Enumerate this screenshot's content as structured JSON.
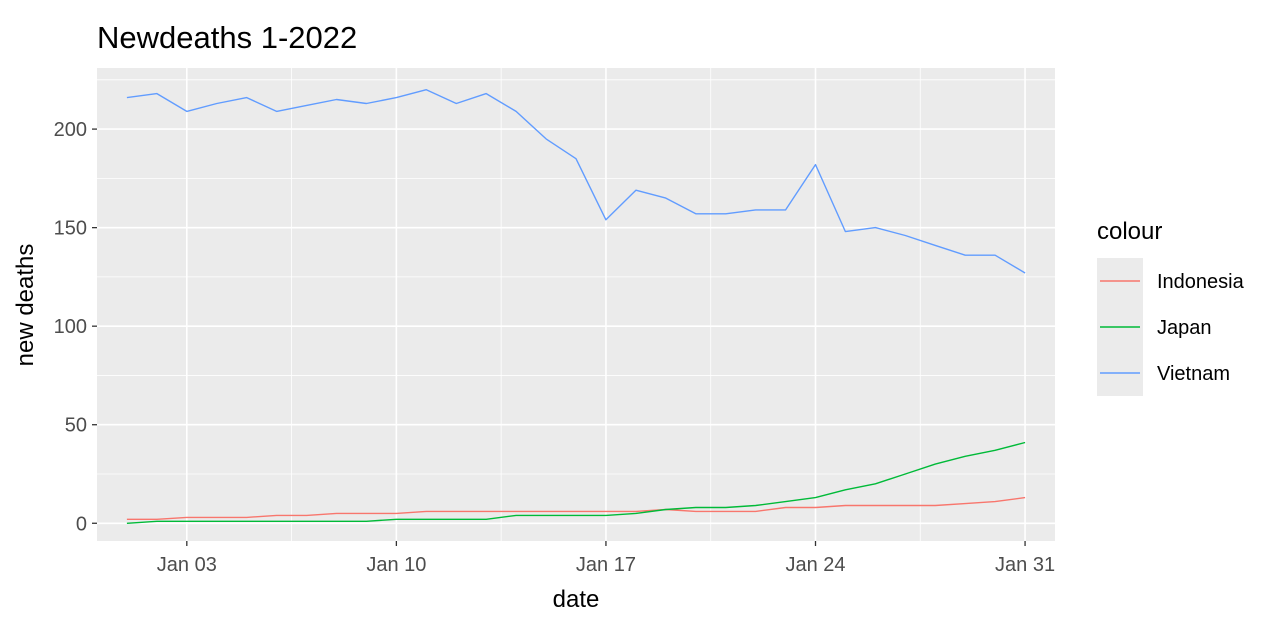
{
  "chart_data": {
    "type": "line",
    "title": "Newdeaths 1-2022",
    "xlabel": "date",
    "ylabel": "new deaths",
    "x": [
      "2022-01-01",
      "2022-01-02",
      "2022-01-03",
      "2022-01-04",
      "2022-01-05",
      "2022-01-06",
      "2022-01-07",
      "2022-01-08",
      "2022-01-09",
      "2022-01-10",
      "2022-01-11",
      "2022-01-12",
      "2022-01-13",
      "2022-01-14",
      "2022-01-15",
      "2022-01-16",
      "2022-01-17",
      "2022-01-18",
      "2022-01-19",
      "2022-01-20",
      "2022-01-21",
      "2022-01-22",
      "2022-01-23",
      "2022-01-24",
      "2022-01-25",
      "2022-01-26",
      "2022-01-27",
      "2022-01-28",
      "2022-01-29",
      "2022-01-30",
      "2022-01-31"
    ],
    "x_tick_labels": [
      "Jan 03",
      "Jan 10",
      "Jan 17",
      "Jan 24",
      "Jan 31"
    ],
    "x_tick_dates": [
      "2022-01-03",
      "2022-01-10",
      "2022-01-17",
      "2022-01-24",
      "2022-01-31"
    ],
    "y_ticks": [
      0,
      50,
      100,
      150,
      200
    ],
    "xlim": [
      "2021-12-31",
      "2022-02-01"
    ],
    "ylim": [
      -9,
      231
    ],
    "grid": true,
    "legend_title": "colour",
    "legend_position": "right",
    "series": [
      {
        "name": "Indonesia",
        "color": "#F8766D",
        "values": [
          2,
          2,
          3,
          3,
          3,
          4,
          4,
          5,
          5,
          5,
          6,
          6,
          6,
          6,
          6,
          6,
          6,
          6,
          7,
          6,
          6,
          6,
          8,
          8,
          9,
          9,
          9,
          9,
          10,
          11,
          13
        ]
      },
      {
        "name": "Japan",
        "color": "#00BA38",
        "values": [
          0,
          1,
          1,
          1,
          1,
          1,
          1,
          1,
          1,
          2,
          2,
          2,
          2,
          4,
          4,
          4,
          4,
          5,
          7,
          8,
          8,
          9,
          11,
          13,
          17,
          20,
          25,
          30,
          34,
          37,
          41
        ]
      },
      {
        "name": "Vietnam",
        "color": "#619CFF",
        "values": [
          216,
          218,
          209,
          213,
          216,
          209,
          212,
          215,
          213,
          216,
          220,
          213,
          218,
          209,
          195,
          185,
          154,
          169,
          165,
          157,
          157,
          159,
          159,
          182,
          148,
          150,
          146,
          141,
          136,
          136,
          127
        ]
      }
    ]
  }
}
